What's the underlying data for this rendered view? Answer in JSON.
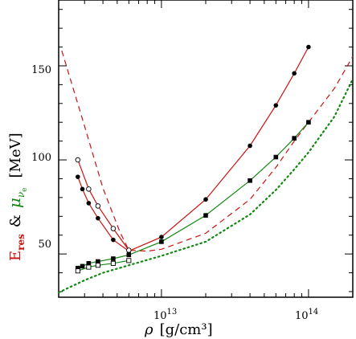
{
  "chart_data": {
    "type": "line",
    "xscale": "log",
    "xlim": [
      2000000000000.0,
      200000000000000.0
    ],
    "ylim": [
      27,
      185
    ],
    "y_ticks": [
      50,
      100,
      150
    ],
    "x_ticks": [
      10000000000000.0,
      100000000000000.0
    ],
    "x_tick_labels": {
      "1e13": {
        "mant": "10",
        "exp": "13"
      },
      "1e14": {
        "mant": "10",
        "exp": "14"
      }
    },
    "xlabel": {
      "rho": "ρ",
      "unit": "[g/cm³]"
    },
    "ylabel": {
      "e": "E",
      "res": "res",
      "amp": "&",
      "mu": "μ",
      "nu": "ν",
      "esub": "e",
      "unit": "[MeV]"
    },
    "colors": {
      "red": "#cc1111",
      "green": "#118811",
      "black": "#000000"
    },
    "series": [
      {
        "style": "red-solid-filled-circles",
        "color": "#cc1111",
        "dash": "solid",
        "marker": "filled-circle",
        "points": [
          [
            2700000000000.0,
            91
          ],
          [
            2900000000000.0,
            84.5
          ],
          [
            3200000000000.0,
            77
          ],
          [
            3700000000000.0,
            69
          ],
          [
            4700000000000.0,
            57.5
          ],
          [
            6000000000000.0,
            51.5
          ],
          [
            10000000000000.0,
            59
          ],
          [
            20000000000000.0,
            79
          ],
          [
            40000000000000.0,
            107.5
          ],
          [
            60000000000000.0,
            129
          ],
          [
            80000000000000.0,
            146
          ],
          [
            100000000000000.0,
            160
          ]
        ]
      },
      {
        "style": "red-solid-open-circles",
        "color": "#cc1111",
        "dash": "solid",
        "marker": "open-circle",
        "points": [
          [
            2700000000000.0,
            100
          ],
          [
            3200000000000.0,
            84.5
          ],
          [
            3700000000000.0,
            75.5
          ],
          [
            4700000000000.0,
            63.5
          ],
          [
            6000000000000.0,
            52
          ]
        ]
      },
      {
        "style": "red-dashed",
        "color": "#cc1111",
        "dash": "dashed",
        "marker": "none",
        "points": [
          [
            2100000000000.0,
            158
          ],
          [
            3000000000000.0,
            118
          ],
          [
            4000000000000.0,
            85
          ],
          [
            5200000000000.0,
            62
          ],
          [
            6000000000000.0,
            52
          ],
          [
            8000000000000.0,
            51.5
          ],
          [
            10000000000000.0,
            52.5
          ],
          [
            20000000000000.0,
            61
          ],
          [
            40000000000000.0,
            79
          ],
          [
            60000000000000.0,
            96
          ],
          [
            80000000000000.0,
            110
          ],
          [
            100000000000000.0,
            120
          ],
          [
            150000000000000.0,
            138
          ],
          [
            200000000000000.0,
            155
          ]
        ]
      },
      {
        "style": "green-solid-filled-squares",
        "color": "#118811",
        "dash": "solid",
        "marker": "filled-square",
        "points": [
          [
            2700000000000.0,
            42.5
          ],
          [
            2900000000000.0,
            43.5
          ],
          [
            3200000000000.0,
            45
          ],
          [
            3700000000000.0,
            46
          ],
          [
            4700000000000.0,
            47.5
          ],
          [
            6000000000000.0,
            49.5
          ],
          [
            10000000000000.0,
            56.5
          ],
          [
            20000000000000.0,
            70.5
          ],
          [
            40000000000000.0,
            89
          ],
          [
            60000000000000.0,
            101.5
          ],
          [
            80000000000000.0,
            111.5
          ],
          [
            100000000000000.0,
            120
          ]
        ]
      },
      {
        "style": "green-solid-open-squares",
        "color": "#118811",
        "dash": "solid",
        "marker": "open-square",
        "points": [
          [
            2700000000000.0,
            41
          ],
          [
            3200000000000.0,
            43
          ],
          [
            3700000000000.0,
            44
          ],
          [
            4700000000000.0,
            45
          ],
          [
            6000000000000.0,
            46.5
          ]
        ]
      },
      {
        "style": "green-dotted",
        "color": "#118811",
        "dash": "dotted",
        "marker": "none",
        "points": [
          [
            2000000000000.0,
            29.5
          ],
          [
            3000000000000.0,
            36
          ],
          [
            4000000000000.0,
            40
          ],
          [
            6000000000000.0,
            44
          ],
          [
            10000000000000.0,
            49
          ],
          [
            20000000000000.0,
            56.5
          ],
          [
            40000000000000.0,
            71
          ],
          [
            60000000000000.0,
            84
          ],
          [
            80000000000000.0,
            95
          ],
          [
            100000000000000.0,
            104
          ],
          [
            150000000000000.0,
            123
          ],
          [
            200000000000000.0,
            143
          ]
        ]
      }
    ]
  }
}
